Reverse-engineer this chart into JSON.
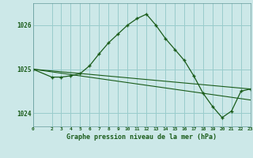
{
  "background_color": "#cce8e8",
  "grid_color": "#99cccc",
  "line_color": "#1a5c1a",
  "marker_color": "#1a5c1a",
  "title": "Graphe pression niveau de la mer (hPa)",
  "xlim": [
    0,
    23
  ],
  "ylim": [
    1023.7,
    1026.5
  ],
  "yticks": [
    1024,
    1025,
    1026
  ],
  "xticks": [
    0,
    2,
    3,
    4,
    5,
    6,
    7,
    8,
    9,
    10,
    11,
    12,
    13,
    14,
    15,
    16,
    17,
    18,
    19,
    20,
    21,
    22,
    23
  ],
  "series": [
    {
      "x": [
        0,
        2,
        3,
        4,
        5,
        6,
        7,
        8,
        9,
        10,
        11,
        12,
        13,
        14,
        15,
        16,
        17,
        18,
        19,
        20,
        21,
        22,
        23
      ],
      "y": [
        1025.0,
        1024.82,
        1024.82,
        1024.85,
        1024.9,
        1025.08,
        1025.35,
        1025.6,
        1025.8,
        1026.0,
        1026.15,
        1026.25,
        1026.0,
        1025.7,
        1025.45,
        1025.2,
        1024.85,
        1024.45,
        1024.15,
        1023.9,
        1024.05,
        1024.5,
        1024.55
      ],
      "show_markers": true
    },
    {
      "x": [
        0,
        23
      ],
      "y": [
        1025.0,
        1024.55
      ],
      "show_markers": false
    },
    {
      "x": [
        0,
        23
      ],
      "y": [
        1025.0,
        1024.3
      ],
      "show_markers": false
    }
  ]
}
